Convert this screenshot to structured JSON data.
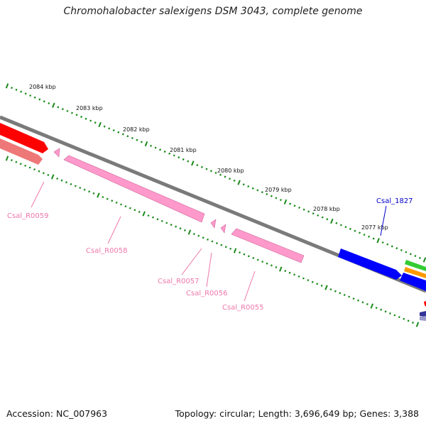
{
  "header": {
    "title": "Chromohalobacter salexigens DSM 3043, complete genome"
  },
  "footer": {
    "accession": "Accession: NC_007963",
    "summary": "Topology: circular; Length: 3,696,649 bp; Genes: 3,388"
  },
  "scale_labels": [
    "2084 kbp",
    "2083 kbp",
    "2082 kbp",
    "2081 kbp",
    "2080 kbp",
    "2079 kbp",
    "2078 kbp",
    "2077 kbp"
  ],
  "gene_labels": {
    "csal_1827": "Csal_1827",
    "csal_r0059": "Csal_R0059",
    "csal_r0058": "Csal_R0058",
    "csal_r0057": "Csal_R0057",
    "csal_r0056": "Csal_R0056",
    "csal_r0055": "Csal_R0055"
  },
  "colors": {
    "backbone": "#7a7a7a",
    "tick": "#1a8a1a",
    "rrna": "#ff99cc",
    "rrna_dark": "#cc6699",
    "red_gene": "#ff0000",
    "red_light": "#ee7777",
    "blue_gene": "#0000ff",
    "green_gene": "#33cc33",
    "orange_gene": "#ff9900",
    "label_pink": "#ee77aa",
    "label_blue": "#0000cc"
  }
}
